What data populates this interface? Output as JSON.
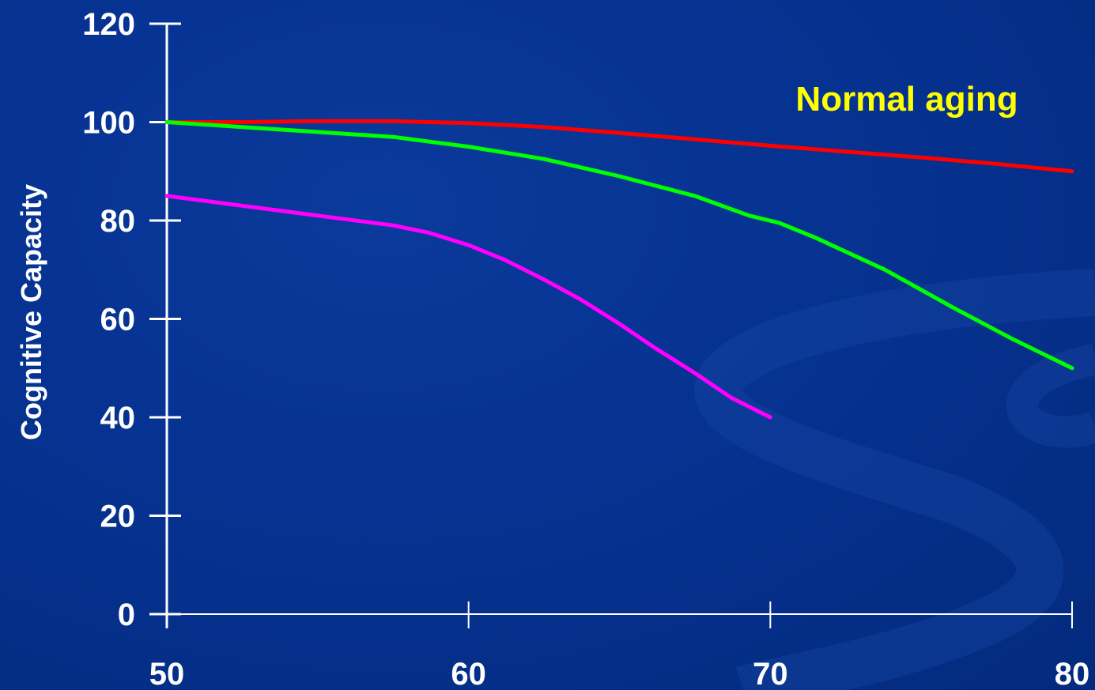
{
  "chart_data": {
    "type": "line",
    "ylabel": "Cognitive Capacity",
    "xlabel": "",
    "xlim": [
      50,
      80
    ],
    "ylim": [
      0,
      120
    ],
    "x_ticks": [
      "50",
      "60",
      "70",
      "80"
    ],
    "y_ticks": [
      "0",
      "20",
      "40",
      "60",
      "80",
      "100",
      "120"
    ],
    "annotation": "Normal aging",
    "grid": false,
    "colors": {
      "background": "#063291",
      "axis": "#ffffff",
      "red_series": "#ff0000",
      "green_series": "#00ff00",
      "magenta_series": "#ff00ff",
      "annotation": "#ffff00"
    },
    "series": [
      {
        "color": "#ff0000",
        "x": [
          50,
          52.5,
          55,
          57.5,
          60,
          62.5,
          65,
          67.5,
          70,
          72.5,
          75,
          77.5,
          80
        ],
        "y": [
          100,
          100,
          100.2,
          100.2,
          99.8,
          99,
          97.8,
          96.5,
          95.2,
          94,
          92.8,
          91.5,
          90
        ]
      },
      {
        "color": "#00ff00",
        "x": [
          50,
          52.5,
          55,
          57.5,
          60,
          62.5,
          65,
          67.5,
          69.3,
          70.3,
          71.5,
          73.8,
          76,
          78,
          80
        ],
        "y": [
          100,
          99,
          98,
          97,
          95,
          92.5,
          89,
          85,
          81,
          79.5,
          76.5,
          70,
          62.5,
          56,
          50
        ]
      },
      {
        "color": "#ff00ff",
        "x": [
          50,
          52.5,
          55,
          57.5,
          58.7,
          60,
          61.2,
          62.5,
          63.7,
          65,
          66.2,
          67.5,
          68.7,
          70
        ],
        "y": [
          85,
          83,
          81,
          79,
          77.5,
          75,
          72,
          68,
          64,
          59,
          54,
          49,
          44,
          40
        ]
      }
    ]
  }
}
